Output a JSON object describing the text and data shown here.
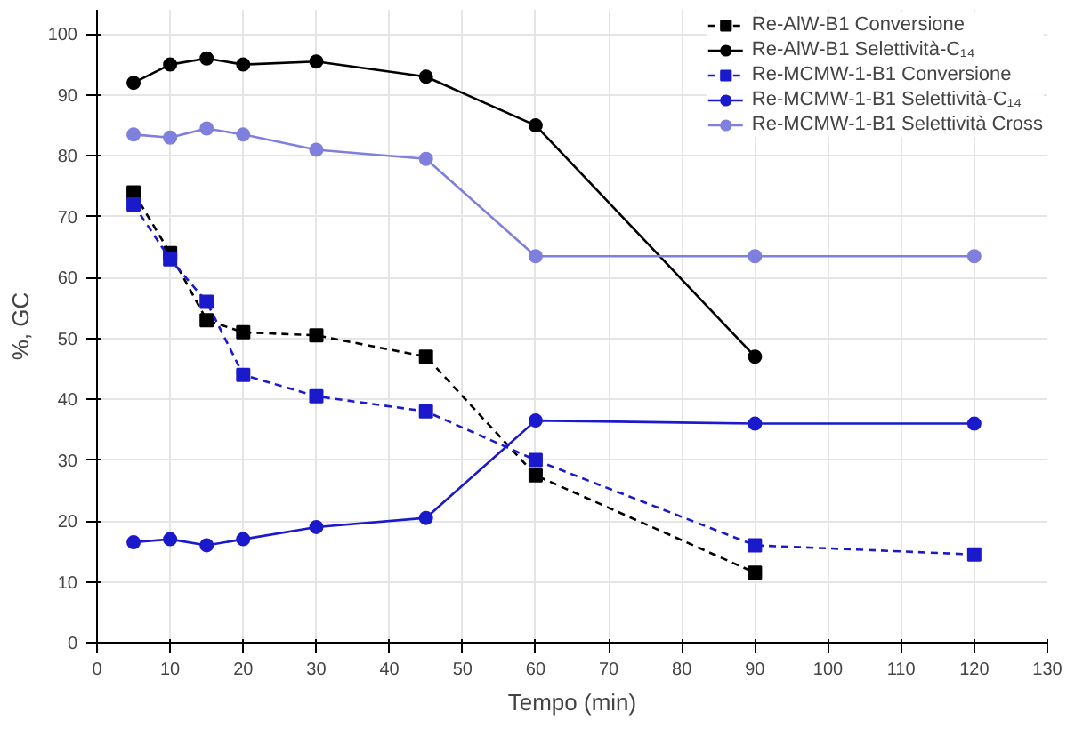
{
  "chart_data": {
    "type": "line",
    "xlabel": "Tempo (min)",
    "ylabel": "%, GC",
    "xlim": [
      0,
      130
    ],
    "ylim": [
      0,
      104
    ],
    "xticks": [
      0,
      10,
      20,
      30,
      40,
      50,
      60,
      70,
      80,
      90,
      100,
      110,
      120,
      130
    ],
    "yticks": [
      0,
      10,
      20,
      30,
      40,
      50,
      60,
      70,
      80,
      90,
      100
    ],
    "grid": true,
    "legend": "top right",
    "series": [
      {
        "name": "Re-AlW-B1 Conversione",
        "color": "#000000",
        "line_style": "dashed",
        "marker": "square",
        "x": [
          5,
          10,
          15,
          20,
          30,
          45,
          60,
          90
        ],
        "values": [
          74,
          64,
          53,
          51,
          50.5,
          47,
          27.5,
          11.5
        ]
      },
      {
        "name": "Re-AlW-B1 Selettività-C₁₄",
        "color": "#000000",
        "line_style": "solid",
        "marker": "circle",
        "x": [
          5,
          10,
          15,
          20,
          30,
          45,
          60,
          90
        ],
        "values": [
          92,
          95,
          96,
          95,
          95.5,
          93,
          85,
          47
        ]
      },
      {
        "name": "Re-MCMW-1-B1 Conversione",
        "color": "#1a1acc",
        "line_style": "dashed",
        "marker": "square",
        "x": [
          5,
          10,
          15,
          20,
          30,
          45,
          60,
          90,
          120
        ],
        "values": [
          72,
          63,
          56,
          44,
          40.5,
          38,
          30,
          16,
          14.5
        ]
      },
      {
        "name": "Re-MCMW-1-B1 Selettività-C₁₄",
        "color": "#1a1acc",
        "line_style": "solid",
        "marker": "circle",
        "x": [
          5,
          10,
          15,
          20,
          30,
          45,
          60,
          90,
          120
        ],
        "values": [
          16.5,
          17,
          16,
          17,
          19,
          20.5,
          36.5,
          36,
          36
        ]
      },
      {
        "name": "Re-MCMW-1-B1 Selettività Cross",
        "color": "#7f7fdd",
        "line_style": "solid",
        "marker": "circle",
        "x": [
          5,
          10,
          15,
          20,
          30,
          45,
          60,
          90,
          120
        ],
        "values": [
          83.5,
          83,
          84.5,
          83.5,
          81,
          79.5,
          63.5,
          63.5,
          63.5
        ]
      }
    ]
  }
}
